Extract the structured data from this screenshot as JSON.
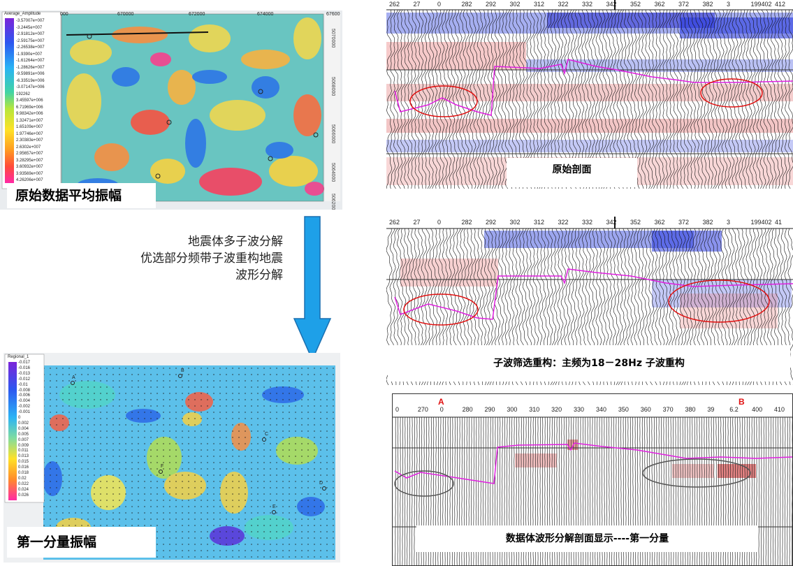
{
  "map_top": {
    "legend_title": "Average_Amplitude",
    "legend_values": [
      "-3.57007e+007",
      "-3.2445e+007",
      "-2.91812e+007",
      "-2.59175e+007",
      "-2.26538e+007",
      "-1.9390e+007",
      "-1.61264e+007",
      "-1.28626e+007",
      "-9.59891e+006",
      "-6.33519e+006",
      "-3.07147e+006",
      "192262",
      "3.45597e+006",
      "6.71969e+006",
      "9.98342e+006",
      "1.32471e+007",
      "1.65109e+007",
      "1.97746e+007",
      "2.30383e+007",
      "2.6302e+007",
      "2.95657e+007",
      "3.28295e+007",
      "3.60932e+007",
      "3.93569e+007",
      "4.26206e+007"
    ],
    "x_ticks": [
      "000",
      "670000",
      "672000",
      "674000",
      "67600"
    ],
    "y_ticks": [
      "5070000",
      "5068000",
      "5066000",
      "5064000",
      "5062000"
    ],
    "label": "原始数据平均振幅"
  },
  "map_bottom": {
    "legend_title": "Regional_1",
    "legend_values": [
      "-0.017",
      "-0.016",
      "-0.013",
      "-0.012",
      "-0.01",
      "-0.008",
      "-0.006",
      "-0.004",
      "-0.002",
      "-0.001",
      "0",
      "0.002",
      "0.004",
      "0.005",
      "0.007",
      "0.009",
      "0.011",
      "0.013",
      "0.015",
      "0.016",
      "0.018",
      "0.02",
      "0.022",
      "0.024",
      "0.026"
    ],
    "label": "第一分量振幅",
    "wells": [
      "A",
      "B",
      "C",
      "D",
      "E",
      "F"
    ]
  },
  "arrow_text": {
    "line1": "地震体多子波分解",
    "line2": "优选部分频带子波重构地震",
    "line3": "波形分解"
  },
  "section1": {
    "ticks": [
      "262",
      "27",
      "0",
      "282",
      "292",
      "302",
      "312",
      "322",
      "332",
      "342",
      "352",
      "362",
      "372",
      "382",
      "3",
      "199402",
      "412"
    ],
    "caption": "原始剖面"
  },
  "section2": {
    "ticks": [
      "262",
      "27",
      "0",
      "282",
      "292",
      "302",
      "312",
      "322",
      "332",
      "342",
      "352",
      "362",
      "372",
      "382",
      "3",
      "199402",
      "41"
    ],
    "caption": "子波筛选重构：主频为18－28Hz 子波重构"
  },
  "section3": {
    "ticks": [
      "0",
      "270",
      "0",
      "280",
      "290",
      "300",
      "310",
      "320",
      "330",
      "340",
      "350",
      "360",
      "370",
      "380",
      "39",
      "6.2",
      "400",
      "410"
    ],
    "well_a": "A",
    "well_b": "B",
    "caption": "数据体波形分解剖面显示----第一分量"
  },
  "colors": {
    "arrow": "#1ea0e8",
    "horizon": "#e020e0",
    "anomaly": "#e01010"
  }
}
